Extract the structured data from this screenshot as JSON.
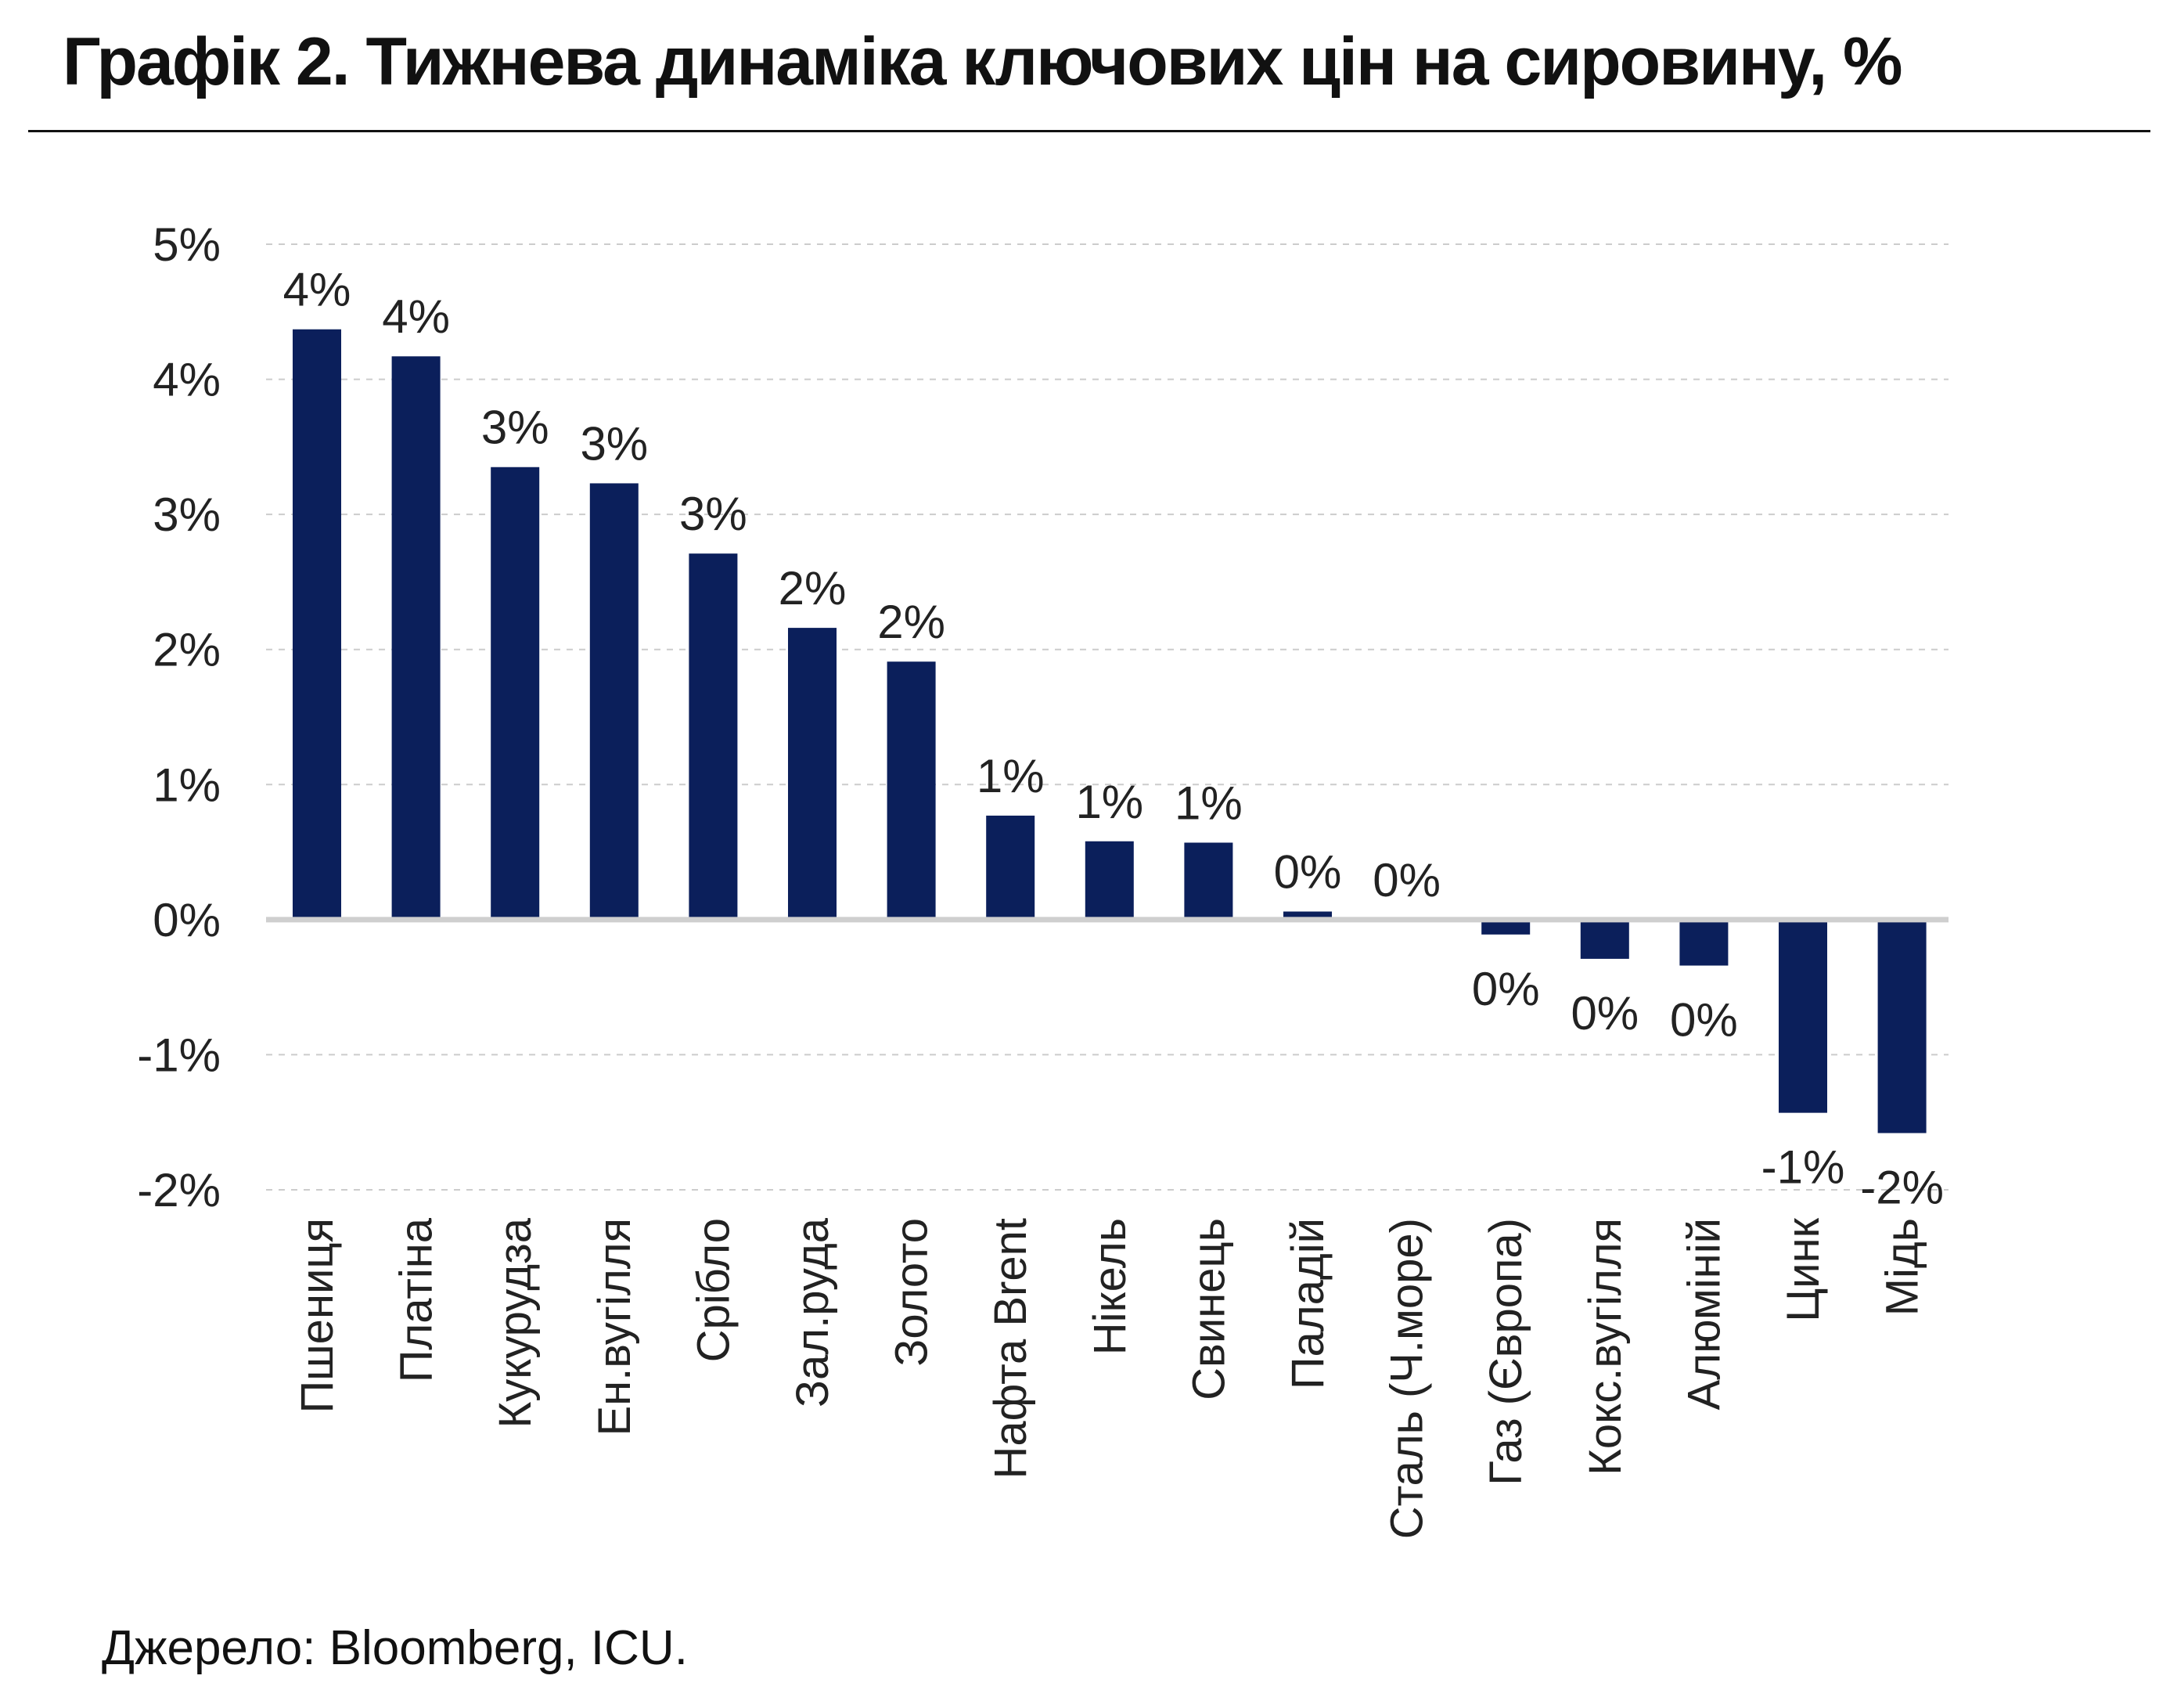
{
  "title": "Графік 2. Тижнева динаміка ключових цін на сировину, %",
  "source": "Джерело: Bloomberg, ICU.",
  "colors": {
    "bar": "#0b1f5b",
    "zero_line": "#cfcfcf",
    "grid": "#cccccc",
    "text": "#222222"
  },
  "chart_data": {
    "type": "bar",
    "categories": [
      "Пшениця",
      "Платіна",
      "Кукурудза",
      "Ен.вугілля",
      "Срібло",
      "Зал.руда",
      "Золото",
      "Нафта Brent",
      "Нікель",
      "Свинець",
      "Паладій",
      "Сталь (Ч.море)",
      "Газ (Європа)",
      "Кокс.вугілля",
      "Алюміній",
      "Цинк",
      "Мідь"
    ],
    "values": [
      4.37,
      4.17,
      3.35,
      3.23,
      2.71,
      2.16,
      1.91,
      0.77,
      0.58,
      0.57,
      0.06,
      0.0,
      -0.11,
      -0.29,
      -0.34,
      -1.43,
      -1.58
    ],
    "data_labels": [
      "4%",
      "4%",
      "3%",
      "3%",
      "3%",
      "2%",
      "2%",
      "1%",
      "1%",
      "1%",
      "0%",
      "0%",
      "0%",
      "0%",
      "0%",
      "-1%",
      "-2%"
    ],
    "yticks": [
      5,
      4,
      3,
      2,
      1,
      0,
      -1,
      -2
    ],
    "ytick_labels": [
      "5%",
      "4%",
      "3%",
      "2%",
      "1%",
      "0%",
      "-1%",
      "-2%"
    ],
    "ylim": [
      -2,
      5
    ],
    "grid": true,
    "legend": "none",
    "xlabel": "",
    "ylabel": ""
  }
}
